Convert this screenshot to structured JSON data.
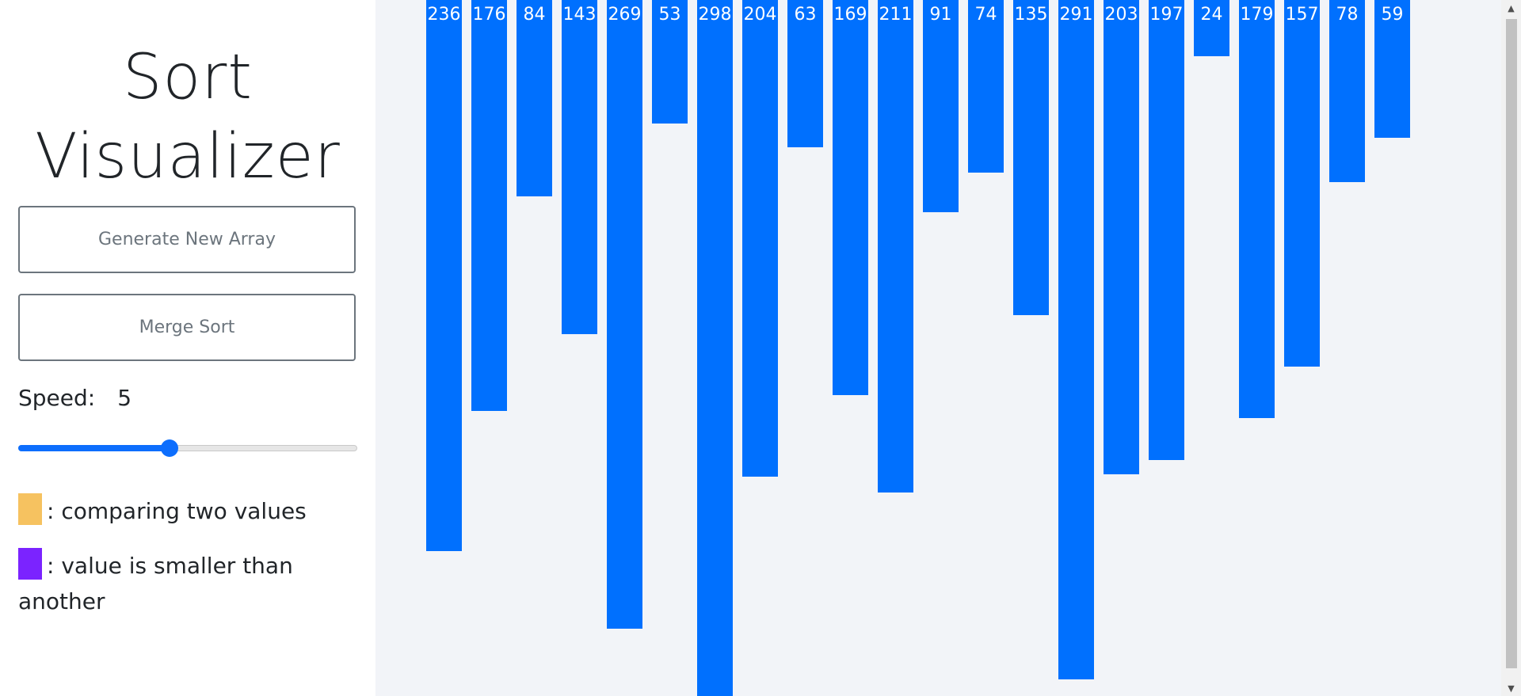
{
  "sidebar": {
    "title_line1": "Sort",
    "title_line2": "Visualizer",
    "generate_button": "Generate New Array",
    "merge_button": "Merge Sort",
    "speed_label": "Speed:",
    "speed_value": "5",
    "slider": {
      "min": 1,
      "max": 10,
      "value": 5
    },
    "legend": [
      {
        "color": "#f6c260",
        "label": ": comparing two values"
      },
      {
        "color": "#7b23ff",
        "label": ": value is smaller than another"
      }
    ]
  },
  "chart_data": {
    "type": "bar",
    "values": [
      236,
      176,
      84,
      143,
      269,
      53,
      298,
      204,
      63,
      169,
      211,
      91,
      74,
      135,
      291,
      203,
      197,
      24,
      179,
      157,
      78,
      59
    ],
    "bar_color": "#0070fe",
    "label_color": "#ffffff"
  },
  "colors": {
    "accent": "#0d6efd",
    "background": "#f2f4f8"
  }
}
